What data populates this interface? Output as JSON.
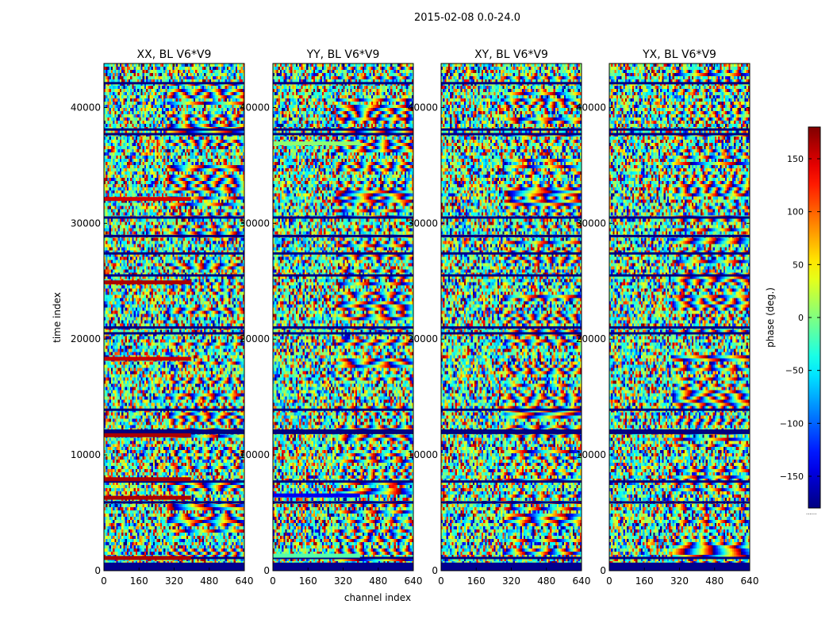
{
  "figure_title": "2015-02-08 0.0-24.0",
  "chart_data": {
    "type": "heatmap",
    "suptitle": "2015-02-08 0.0-24.0",
    "xlabel": "channel index",
    "ylabel": "time index",
    "xlim": [
      0,
      640
    ],
    "ylim": [
      0,
      43800
    ],
    "xticks": [
      0,
      160,
      320,
      480,
      640
    ],
    "yticks": [
      0,
      10000,
      20000,
      30000,
      40000
    ],
    "colormap": "jet",
    "colorbar": {
      "label": "phase (deg.)",
      "range": [
        -180,
        180
      ],
      "ticks": [
        -150,
        -100,
        -50,
        0,
        50,
        100,
        150
      ],
      "tick_labels": [
        "−150",
        "−100",
        "−50",
        "0",
        "50",
        "100",
        "150"
      ],
      "footer": "......"
    },
    "panels": [
      {
        "title": "XX, BL V6*V9",
        "polarization": "XX",
        "baseline": "V6*V9"
      },
      {
        "title": "YY, BL V6*V9",
        "polarization": "YY",
        "baseline": "V6*V9"
      },
      {
        "title": "XY, BL V6*V9",
        "polarization": "XY",
        "baseline": "V6*V9"
      },
      {
        "title": "YX, BL V6*V9",
        "polarization": "YX",
        "baseline": "V6*V9"
      }
    ],
    "empty_time_range": [
      0,
      700
    ],
    "flagged_rows": [
      1100,
      5900,
      7700,
      11900,
      12100,
      13900,
      20500,
      21000,
      25500,
      27400,
      28900,
      30500,
      37700,
      38100,
      42100
    ],
    "strong_bands": {
      "XX": [
        {
          "time": 1100,
          "phase_deg": 165
        },
        {
          "time": 6300,
          "phase_deg": 165
        },
        {
          "time": 7900,
          "phase_deg": 165
        },
        {
          "time": 11700,
          "phase_deg": 165
        },
        {
          "time": 18300,
          "phase_deg": 155
        },
        {
          "time": 24900,
          "phase_deg": 165
        },
        {
          "time": 32100,
          "phase_deg": 150
        }
      ],
      "YY": [
        {
          "time": 1300,
          "phase_deg": -15
        },
        {
          "time": 6500,
          "phase_deg": -140
        },
        {
          "time": 36900,
          "phase_deg": 5
        }
      ]
    }
  },
  "colors": {
    "background": "#ffffff",
    "axes": "#000000",
    "empty_band": "#00008f",
    "flag_line": "#000080"
  }
}
